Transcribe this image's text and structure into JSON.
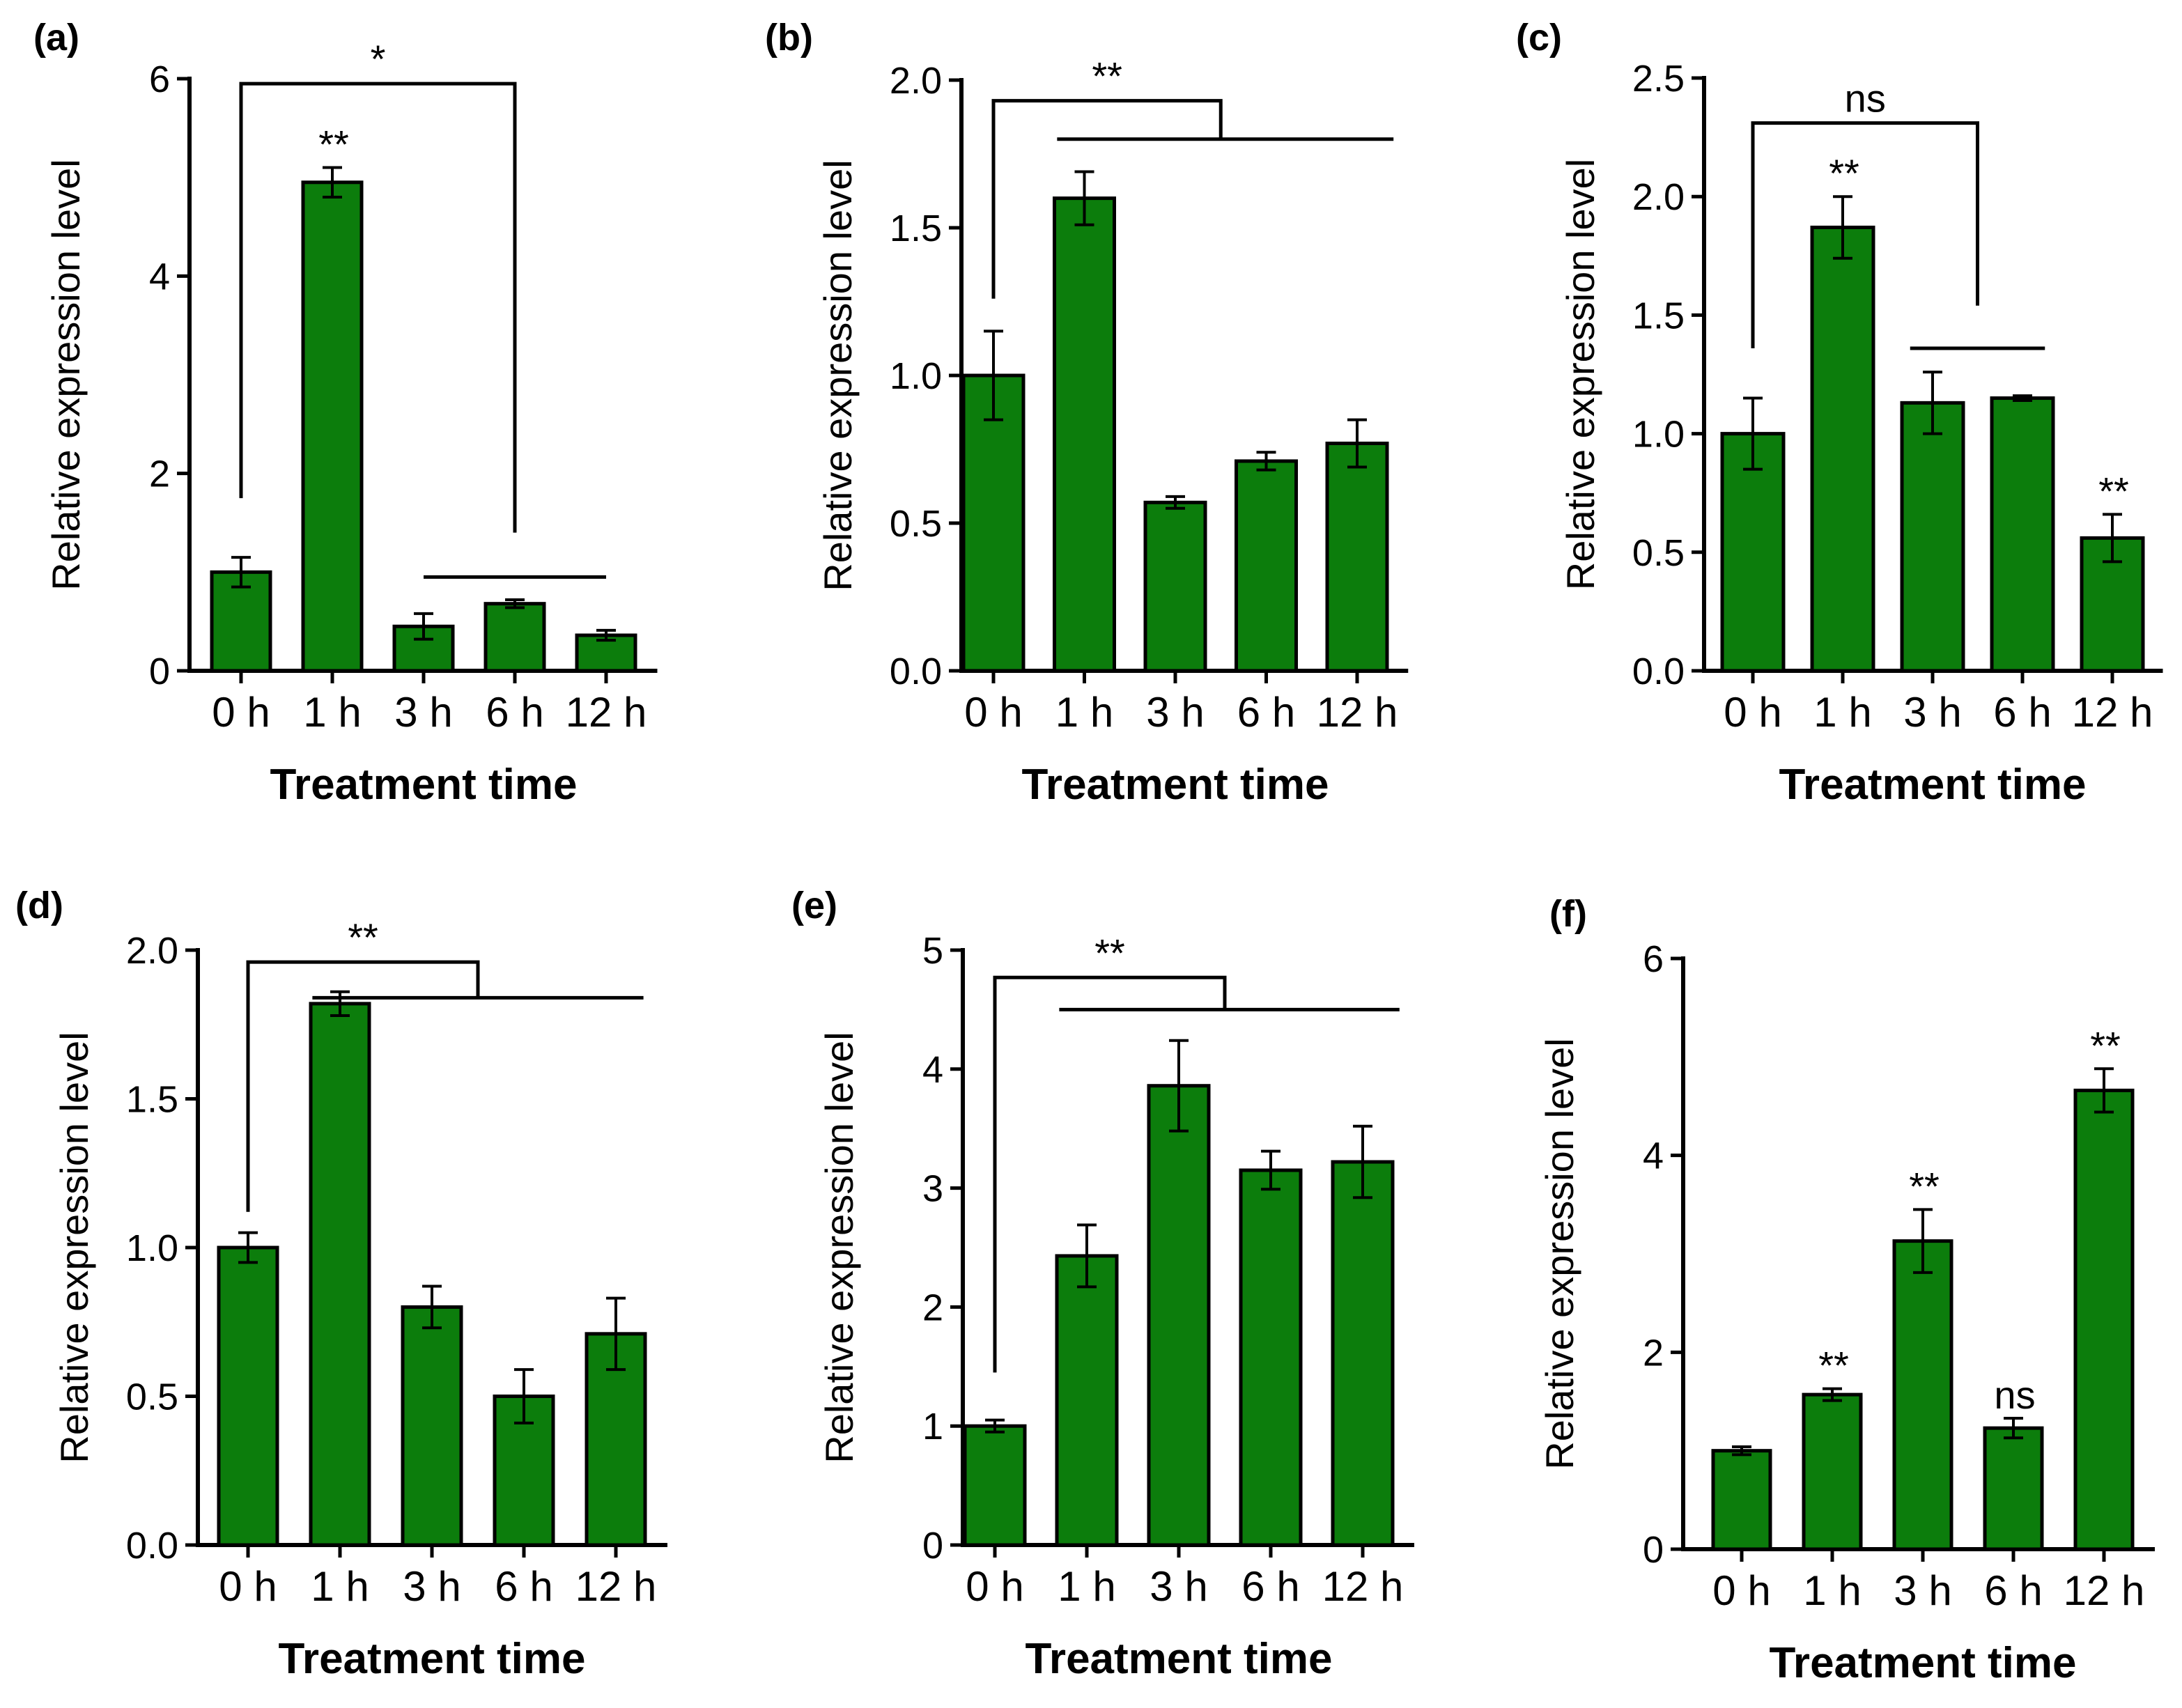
{
  "figure": {
    "bar_color": "#0c7d0c",
    "axis_color": "#000000"
  },
  "chart_data": [
    {
      "panel": "(a)",
      "type": "bar",
      "categories": [
        "0 h",
        "1 h",
        "3 h",
        "6 h",
        "12 h"
      ],
      "values": [
        1.0,
        4.95,
        0.45,
        0.68,
        0.36
      ],
      "errors": [
        0.15,
        0.15,
        0.13,
        0.04,
        0.05
      ],
      "ylim": [
        0,
        6
      ],
      "yticks": [
        0,
        2,
        4,
        6
      ],
      "ytick_labels": [
        "0",
        "2",
        "4",
        "6"
      ],
      "ylabel": "Relative expression level",
      "xlabel": "Treatment time",
      "bar_annotations": [
        {
          "index": 1,
          "text": "**"
        }
      ],
      "brackets": [
        {
          "from": 0,
          "to": 3,
          "level": 5.95,
          "from_leg_end": 1.75,
          "to_leg_end": 1.4,
          "text": "*"
        }
      ],
      "group_lines": [
        {
          "from": 2,
          "to": 4,
          "level": 0.95
        }
      ]
    },
    {
      "panel": "(b)",
      "type": "bar",
      "categories": [
        "0 h",
        "1 h",
        "3 h",
        "6 h",
        "12 h"
      ],
      "values": [
        1.0,
        1.6,
        0.57,
        0.71,
        0.77
      ],
      "errors": [
        0.15,
        0.09,
        0.02,
        0.03,
        0.08
      ],
      "ylim": [
        0,
        2.0
      ],
      "yticks": [
        0,
        0.5,
        1.0,
        1.5,
        2.0
      ],
      "ytick_labels": [
        "0.0",
        "0.5",
        "1.0",
        "1.5",
        "2.0"
      ],
      "ylabel": "Relative expression level",
      "xlabel": "Treatment time",
      "bar_annotations": [],
      "brackets": [
        {
          "from": 0,
          "to": 2.5,
          "level": 1.93,
          "from_leg_end": 1.26,
          "to_leg_end": 1.8,
          "text": "**"
        }
      ],
      "group_lines": [
        {
          "from": 0.7,
          "to": 4.4,
          "level": 1.8
        }
      ]
    },
    {
      "panel": "(c)",
      "type": "bar",
      "categories": [
        "0 h",
        "1 h",
        "3 h",
        "6 h",
        "12 h"
      ],
      "values": [
        1.0,
        1.87,
        1.13,
        1.15,
        0.56
      ],
      "errors": [
        0.15,
        0.13,
        0.13,
        0.01,
        0.1
      ],
      "ylim": [
        0,
        2.5
      ],
      "yticks": [
        0,
        0.5,
        1.0,
        1.5,
        2.0,
        2.5
      ],
      "ytick_labels": [
        "0.0",
        "0.5",
        "1.0",
        "1.5",
        "2.0",
        "2.5"
      ],
      "ylabel": "Relative expression level",
      "xlabel": "Treatment time",
      "bar_annotations": [
        {
          "index": 1,
          "text": "**"
        },
        {
          "index": 4,
          "text": "**"
        }
      ],
      "brackets": [
        {
          "from": 0,
          "to": 2.5,
          "level": 2.31,
          "from_leg_end": 1.36,
          "to_leg_end": 1.54,
          "text": "ns"
        }
      ],
      "group_lines": [
        {
          "from": 1.75,
          "to": 3.25,
          "level": 1.36
        }
      ]
    },
    {
      "panel": "(d)",
      "type": "bar",
      "categories": [
        "0 h",
        "1 h",
        "3 h",
        "6 h",
        "12 h"
      ],
      "values": [
        1.0,
        1.82,
        0.8,
        0.5,
        0.71
      ],
      "errors": [
        0.05,
        0.04,
        0.07,
        0.09,
        0.12
      ],
      "ylim": [
        0,
        2.0
      ],
      "yticks": [
        0,
        0.5,
        1.0,
        1.5,
        2.0
      ],
      "ytick_labels": [
        "0.0",
        "0.5",
        "1.0",
        "1.5",
        "2.0"
      ],
      "ylabel": "Relative expression level",
      "xlabel": "Treatment time",
      "bar_annotations": [],
      "brackets": [
        {
          "from": 0,
          "to": 2.5,
          "level": 1.96,
          "from_leg_end": 1.12,
          "to_leg_end": 1.84,
          "text": "**"
        }
      ],
      "group_lines": [
        {
          "from": 0.7,
          "to": 4.3,
          "level": 1.84
        }
      ]
    },
    {
      "panel": "(e)",
      "type": "bar",
      "categories": [
        "0 h",
        "1 h",
        "3 h",
        "6 h",
        "12 h"
      ],
      "values": [
        1.0,
        2.43,
        3.86,
        3.15,
        3.22
      ],
      "errors": [
        0.05,
        0.26,
        0.38,
        0.16,
        0.3
      ],
      "ylim": [
        0,
        5
      ],
      "yticks": [
        0,
        1,
        2,
        3,
        4,
        5
      ],
      "ytick_labels": [
        "0",
        "1",
        "2",
        "3",
        "4",
        "5"
      ],
      "ylabel": "Relative expression level",
      "xlabel": "Treatment time",
      "bar_annotations": [],
      "brackets": [
        {
          "from": 0,
          "to": 2.5,
          "level": 4.77,
          "from_leg_end": 1.45,
          "to_leg_end": 4.5,
          "text": "**"
        }
      ],
      "group_lines": [
        {
          "from": 0.7,
          "to": 4.4,
          "level": 4.5
        }
      ]
    },
    {
      "panel": "(f)",
      "type": "bar",
      "categories": [
        "0 h",
        "1 h",
        "3 h",
        "6 h",
        "12 h"
      ],
      "values": [
        1.0,
        1.57,
        3.13,
        1.23,
        4.66
      ],
      "errors": [
        0.04,
        0.06,
        0.32,
        0.1,
        0.22
      ],
      "ylim": [
        0,
        6
      ],
      "yticks": [
        0,
        2,
        4,
        6
      ],
      "ytick_labels": [
        "0",
        "2",
        "4",
        "6"
      ],
      "ylabel": "Relative expression level",
      "xlabel": "Treatment time",
      "bar_annotations": [
        {
          "index": 1,
          "text": "**"
        },
        {
          "index": 2,
          "text": "**"
        },
        {
          "index": 3,
          "text": "ns"
        },
        {
          "index": 4,
          "text": "**"
        }
      ],
      "brackets": [],
      "group_lines": []
    }
  ]
}
